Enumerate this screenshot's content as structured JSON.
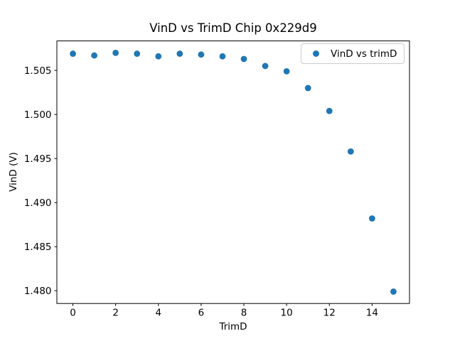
{
  "chart_data": {
    "type": "scatter",
    "title": "VinD vs TrimD Chip 0x229d9",
    "xlabel": "TrimD",
    "ylabel": "VinD (V)",
    "x": [
      0,
      1,
      2,
      3,
      4,
      5,
      6,
      7,
      8,
      9,
      10,
      11,
      12,
      13,
      14,
      15
    ],
    "series": [
      {
        "name": "VinD vs trimD",
        "color": "#1f77b4",
        "values": [
          1.5069,
          1.5067,
          1.507,
          1.5069,
          1.5066,
          1.5069,
          1.5068,
          1.5066,
          1.5063,
          1.5055,
          1.5049,
          1.503,
          1.5004,
          1.4958,
          1.4882,
          1.4799
        ]
      }
    ],
    "xlim": [
      -0.75,
      15.75
    ],
    "ylim": [
      1.47855,
      1.50835
    ],
    "xticks": [
      0,
      2,
      4,
      6,
      8,
      10,
      12,
      14
    ],
    "xtick_labels": [
      "0",
      "2",
      "4",
      "6",
      "8",
      "10",
      "12",
      "14"
    ],
    "yticks": [
      1.48,
      1.485,
      1.49,
      1.495,
      1.5,
      1.505
    ],
    "ytick_labels": [
      "1.480",
      "1.485",
      "1.490",
      "1.495",
      "1.500",
      "1.505"
    ],
    "grid": false,
    "legend_position": "upper right",
    "marker": {
      "shape": "circle",
      "color": "#1f77b4"
    }
  },
  "colors": {
    "background": "#ffffff",
    "spine": "#000000",
    "tick_text": "#000000",
    "legend_border": "#cccccc"
  }
}
